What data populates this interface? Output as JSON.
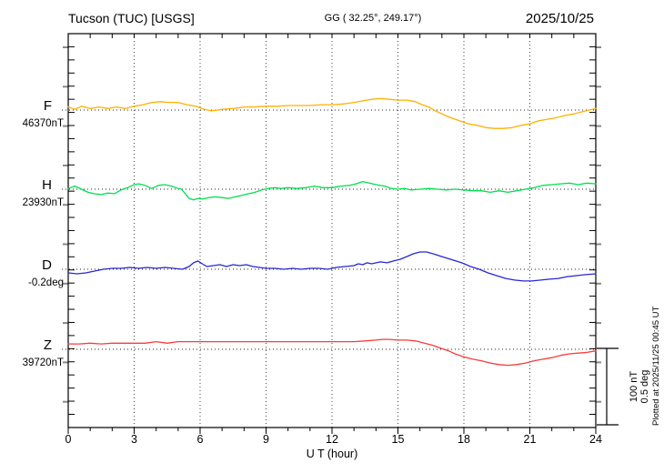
{
  "header": {
    "station": "Tucson (TUC)  [USGS]",
    "coordinates": "GG ( 32.25°, 249.17°)",
    "date": "2025/10/25"
  },
  "channels": [
    {
      "label": "F",
      "value": "46370nT",
      "color": "#FFB000"
    },
    {
      "label": "H",
      "value": "23930nT",
      "color": "#00DF4F"
    },
    {
      "label": "D",
      "value": "-0.2deg",
      "color": "#2727D2"
    },
    {
      "label": "Z",
      "value": "39720nT",
      "color": "#F93B3B"
    }
  ],
  "axis": {
    "xlabel": "U T (hour)",
    "tick_hours": [
      0,
      3,
      6,
      9,
      12,
      15,
      18,
      21,
      24
    ],
    "tick_labels": [
      "0",
      "3",
      "6",
      "9",
      "12",
      "15",
      "18",
      "21",
      "24"
    ],
    "grid_hours": [
      3,
      6,
      9,
      12,
      15,
      18,
      21
    ]
  },
  "scalebar": {
    "line1": "100 nT",
    "line2": "0.5 deg"
  },
  "footer": {
    "plotted": "Plotted at 2025/11/25 00:45 UT"
  },
  "chart_data": {
    "type": "line",
    "title": "Tucson (TUC) [USGS] magnetogram 2025/10/25",
    "xlabel": "U T (hour)",
    "x_range": [
      0,
      24
    ],
    "x_major_tick": 3,
    "x_minor_tick": 1,
    "grid": "dotted vertical at 3h; dotted horizontal baseline per channel",
    "legend_position": "left margin channel labels",
    "amplitude_scale": {
      "nT_per_div": 100,
      "deg_per_div": 0.5
    },
    "series": [
      {
        "name": "F",
        "unit": "nT",
        "baseline_value": 46370,
        "baseline_label": "46370nT",
        "color": "#FFB000",
        "x": [
          0,
          0.3,
          0.6,
          1,
          1.4,
          1.8,
          2.2,
          2.6,
          3,
          3.4,
          3.8,
          4.2,
          4.6,
          5,
          5.4,
          5.8,
          6.2,
          6.5,
          6.8,
          7,
          7.5,
          8,
          8.5,
          9,
          9.5,
          10,
          10.5,
          11,
          11.5,
          12,
          12.5,
          13,
          13.4,
          13.8,
          14.2,
          14.6,
          15,
          15.4,
          15.8,
          16.1,
          16.4,
          16.7,
          17,
          17.4,
          17.8,
          18.2,
          18.6,
          19,
          19.4,
          19.8,
          20.2,
          20.6,
          21,
          21.4,
          21.8,
          22.2,
          22.6,
          23,
          23.4,
          23.7,
          24
        ],
        "y_rel": [
          4,
          1,
          5,
          2,
          4,
          2,
          4,
          2,
          5,
          7,
          10,
          11,
          10,
          10,
          7,
          5,
          1,
          -1,
          0,
          1,
          2,
          4,
          4,
          5,
          5,
          6,
          6,
          6,
          7,
          7,
          8,
          10,
          12,
          14,
          15,
          14,
          13,
          13,
          11,
          7,
          4,
          -1,
          -5,
          -10,
          -14,
          -18,
          -20,
          -23,
          -24,
          -24,
          -23,
          -20,
          -18,
          -14,
          -12,
          -10,
          -7,
          -5,
          -2,
          0,
          2
        ]
      },
      {
        "name": "H",
        "unit": "nT",
        "baseline_value": 23930,
        "baseline_label": "23930nT",
        "color": "#00DF4F",
        "x": [
          0,
          0.3,
          0.6,
          0.9,
          1.2,
          1.5,
          1.8,
          2.1,
          2.4,
          2.7,
          3,
          3.2,
          3.5,
          3.8,
          4.1,
          4.4,
          4.7,
          5,
          5.15,
          5.3,
          5.5,
          5.7,
          5.9,
          6.1,
          6.4,
          6.7,
          7,
          7.3,
          7.6,
          7.9,
          8.2,
          8.5,
          8.8,
          9.1,
          9.4,
          9.7,
          10,
          10.4,
          10.8,
          11.2,
          11.6,
          12,
          12.4,
          12.8,
          13.1,
          13.4,
          13.7,
          14,
          14.4,
          14.7,
          15,
          15.3,
          15.6,
          16,
          16.4,
          16.8,
          17.2,
          17.6,
          18,
          18.4,
          18.8,
          19.2,
          19.6,
          20,
          20.4,
          20.8,
          21.2,
          21.6,
          22,
          22.4,
          22.8,
          23.2,
          23.6,
          24
        ],
        "y_rel": [
          1,
          4,
          0,
          -4,
          -6,
          -7,
          -5,
          -6,
          -1,
          2,
          6,
          7,
          5,
          1,
          5,
          6,
          4,
          1,
          0,
          -5,
          -12,
          -14,
          -12,
          -13,
          -11,
          -10,
          -11,
          -12,
          -10,
          -8,
          -6,
          -4,
          -1,
          1,
          2,
          1,
          2,
          1,
          2,
          4,
          2,
          2,
          4,
          5,
          7,
          10,
          8,
          6,
          4,
          1,
          0,
          1,
          -1,
          0,
          1,
          0,
          -1,
          0,
          -1,
          -2,
          -2,
          -4,
          -2,
          -4,
          -2,
          0,
          2,
          5,
          6,
          7,
          8,
          6,
          8,
          7
        ]
      },
      {
        "name": "D",
        "unit": "deg",
        "baseline_value": -0.2,
        "baseline_label": "-0.2deg",
        "color": "#2727D2",
        "x": [
          0,
          0.4,
          0.8,
          1.2,
          1.6,
          2,
          2.4,
          2.8,
          3.2,
          3.6,
          4,
          4.4,
          4.8,
          5.2,
          5.5,
          5.7,
          5.9,
          6.1,
          6.3,
          6.6,
          6.9,
          7.2,
          7.5,
          7.8,
          8.1,
          8.4,
          8.7,
          9,
          9.4,
          9.8,
          10.2,
          10.6,
          11,
          11.4,
          11.8,
          12.2,
          12.6,
          13,
          13.2,
          13.4,
          13.6,
          13.8,
          14.2,
          14.5,
          14.8,
          15.1,
          15.4,
          15.7,
          16,
          16.3,
          16.6,
          17,
          17.4,
          17.9,
          18.3,
          18.7,
          19.1,
          19.5,
          19.9,
          20.3,
          20.7,
          21.1,
          21.5,
          21.9,
          22.3,
          22.7,
          23.1,
          23.5,
          24
        ],
        "y_rel": [
          -0.024,
          -0.03,
          -0.024,
          -0.012,
          0,
          0.006,
          0.006,
          0.012,
          0.006,
          0.012,
          0.006,
          0.012,
          0.006,
          0,
          0.018,
          0.042,
          0.054,
          0.036,
          0.018,
          0.024,
          0.03,
          0.018,
          0.03,
          0.024,
          0.03,
          0.018,
          0.012,
          0.006,
          0.006,
          0,
          0.006,
          0,
          0.006,
          0.006,
          0,
          0.012,
          0.018,
          0.024,
          0.036,
          0.03,
          0.042,
          0.036,
          0.048,
          0.042,
          0.054,
          0.065,
          0.083,
          0.101,
          0.113,
          0.113,
          0.101,
          0.083,
          0.065,
          0.042,
          0.018,
          0,
          -0.024,
          -0.042,
          -0.06,
          -0.071,
          -0.077,
          -0.077,
          -0.071,
          -0.065,
          -0.06,
          -0.048,
          -0.042,
          -0.036,
          -0.03
        ]
      },
      {
        "name": "Z",
        "unit": "nT",
        "baseline_value": 39720,
        "baseline_label": "39720nT",
        "color": "#F93B3B",
        "x": [
          0,
          0.5,
          1,
          1.5,
          2,
          2.5,
          3,
          3.5,
          4,
          4.5,
          5,
          5.5,
          6,
          6.5,
          7,
          7.5,
          8,
          8.5,
          9,
          9.5,
          10,
          10.5,
          11,
          11.5,
          12,
          12.5,
          13,
          13.5,
          14,
          14.3,
          14.6,
          15,
          15.4,
          15.8,
          16.2,
          16.6,
          17,
          17.3,
          17.6,
          18,
          18.4,
          18.8,
          19.2,
          19.6,
          20,
          20.4,
          20.8,
          21.2,
          21.6,
          22,
          22.4,
          22.8,
          23.2,
          23.6,
          24
        ],
        "y_rel": [
          7,
          7,
          8,
          7,
          8,
          8,
          8,
          8,
          10,
          8,
          10,
          10,
          10,
          10,
          10,
          10,
          10,
          10,
          10,
          10,
          10,
          10,
          10,
          10,
          10,
          10,
          10,
          11,
          12,
          13,
          13,
          12,
          12,
          11,
          8,
          5,
          1,
          -2,
          -6,
          -10,
          -13,
          -15,
          -18,
          -20,
          -21,
          -20,
          -18,
          -15,
          -13,
          -11,
          -8,
          -6,
          -5,
          -4,
          -2
        ]
      }
    ]
  }
}
